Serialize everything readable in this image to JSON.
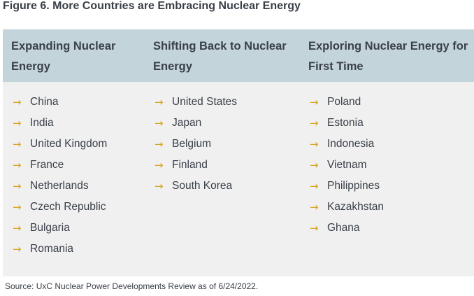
{
  "title": "Figure 6. More Countries are Embracing Nuclear Energy",
  "columns": [
    {
      "header": "Expanding Nuclear Energy",
      "items": [
        "China",
        "India",
        "United Kingdom",
        "France",
        "Netherlands",
        "Czech Republic",
        "Bulgaria",
        "Romania"
      ]
    },
    {
      "header": "Shifting Back to Nuclear Energy",
      "items": [
        "United States",
        "Japan",
        "Belgium",
        "Finland",
        "South Korea"
      ]
    },
    {
      "header": "Exploring Nuclear Energy for First Time",
      "items": [
        "Poland",
        "Estonia",
        "Indonesia",
        "Vietnam",
        "Philippines",
        "Kazakhstan",
        "Ghana"
      ]
    }
  ],
  "source": "Source: UxC Nuclear Power Developments Review as of 6/24/2022.",
  "icon": "arrow-right-icon",
  "colors": {
    "header_bg": "#c4d4db",
    "body_bg": "#f0f0f0",
    "arrow": "#d9a623",
    "text": "#3a4049"
  }
}
